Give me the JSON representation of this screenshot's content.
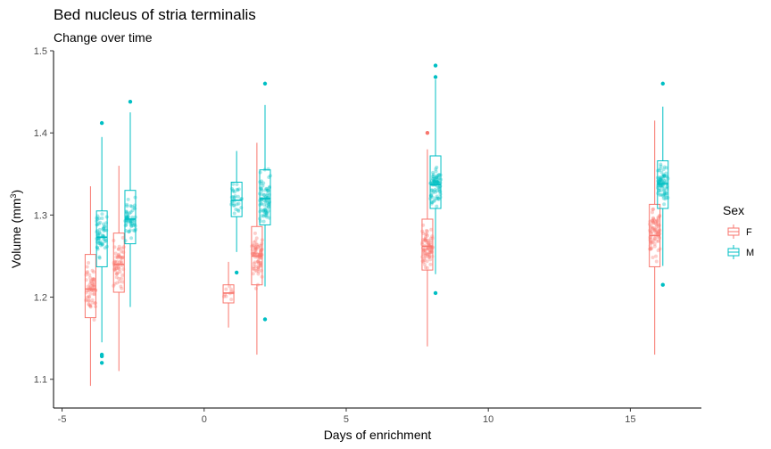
{
  "chart_data": {
    "type": "box",
    "title": "Bed nucleus of stria terminalis",
    "subtitle": "Change over time",
    "xlabel": "Days of enrichment",
    "ylabel_main": "Volume (mm",
    "ylabel_sup": "3",
    "ylabel_end": ")",
    "xlim": [
      -5.3,
      17.5
    ],
    "ylim": [
      1.065,
      1.5
    ],
    "xticks": [
      -5,
      0,
      5,
      10,
      15
    ],
    "yticks": [
      1.1,
      1.2,
      1.3,
      1.4,
      1.5
    ],
    "xtick_labels": [
      "-5",
      "0",
      "5",
      "10",
      "15"
    ],
    "ytick_labels": [
      "1.1",
      "1.2",
      "1.3",
      "1.4",
      "1.5"
    ],
    "grid": false,
    "legend": {
      "title": "Sex",
      "position": "right",
      "entries": [
        {
          "label": "F",
          "color": "#F8766D"
        },
        {
          "label": "M",
          "color": "#00BFC4"
        }
      ]
    },
    "series": [
      {
        "name": "F",
        "color": "#F8766D",
        "boxes": [
          {
            "x": -4.0,
            "q1": 1.175,
            "median": 1.21,
            "q3": 1.252,
            "lower": 1.092,
            "upper": 1.335,
            "n": 60,
            "outliers": []
          },
          {
            "x": -3.0,
            "q1": 1.206,
            "median": 1.24,
            "q3": 1.278,
            "lower": 1.11,
            "upper": 1.36,
            "n": 60,
            "outliers": []
          },
          {
            "x": 0.857,
            "q1": 1.193,
            "median": 1.205,
            "q3": 1.215,
            "lower": 1.163,
            "upper": 1.243,
            "n": 10,
            "outliers": []
          },
          {
            "x": 1.857,
            "q1": 1.215,
            "median": 1.25,
            "q3": 1.286,
            "lower": 1.13,
            "upper": 1.388,
            "n": 80,
            "outliers": []
          },
          {
            "x": 7.857,
            "q1": 1.233,
            "median": 1.262,
            "q3": 1.295,
            "lower": 1.14,
            "upper": 1.38,
            "n": 80,
            "outliers": [
              1.4
            ]
          },
          {
            "x": 15.857,
            "q1": 1.237,
            "median": 1.275,
            "q3": 1.313,
            "lower": 1.13,
            "upper": 1.415,
            "n": 80,
            "outliers": []
          }
        ]
      },
      {
        "name": "M",
        "color": "#00BFC4",
        "boxes": [
          {
            "x": -3.6,
            "q1": 1.237,
            "median": 1.273,
            "q3": 1.305,
            "lower": 1.145,
            "upper": 1.395,
            "n": 60,
            "outliers": [
              1.13,
              1.128,
              1.12,
              1.412
            ]
          },
          {
            "x": -2.6,
            "q1": 1.265,
            "median": 1.295,
            "q3": 1.33,
            "lower": 1.188,
            "upper": 1.425,
            "n": 60,
            "outliers": [
              1.438
            ]
          },
          {
            "x": 1.143,
            "q1": 1.298,
            "median": 1.318,
            "q3": 1.34,
            "lower": 1.255,
            "upper": 1.378,
            "n": 30,
            "outliers": [
              1.23
            ]
          },
          {
            "x": 2.143,
            "q1": 1.288,
            "median": 1.32,
            "q3": 1.355,
            "lower": 1.213,
            "upper": 1.434,
            "n": 80,
            "outliers": [
              1.173,
              1.46
            ]
          },
          {
            "x": 8.143,
            "q1": 1.308,
            "median": 1.337,
            "q3": 1.372,
            "lower": 1.228,
            "upper": 1.465,
            "n": 80,
            "outliers": [
              1.205,
              1.468,
              1.482
            ]
          },
          {
            "x": 16.143,
            "q1": 1.308,
            "median": 1.338,
            "q3": 1.366,
            "lower": 1.238,
            "upper": 1.432,
            "n": 80,
            "outliers": [
              1.215,
              1.46
            ]
          }
        ]
      }
    ]
  }
}
